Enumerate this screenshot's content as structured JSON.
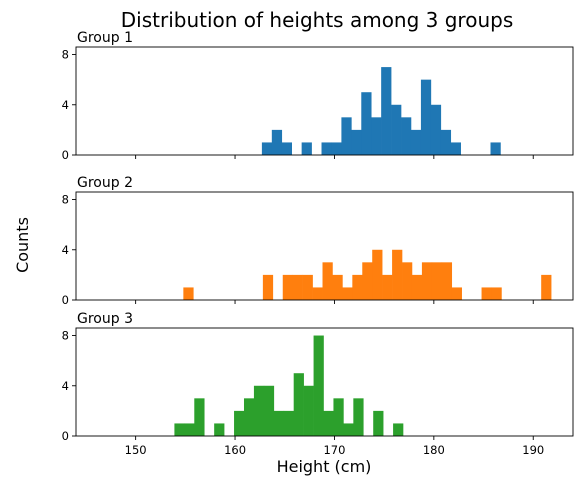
{
  "suptitle": "Distribution of heights among 3 groups",
  "ylabel": "Counts",
  "xlabel": "Height (cm)",
  "chart_data": {
    "type": "bar",
    "xlim": [
      144,
      194
    ],
    "ylim": [
      0,
      8.6
    ],
    "x_ticks": [
      150,
      160,
      170,
      180,
      190
    ],
    "y_ticks": [
      0,
      4,
      8
    ],
    "bin_width": 1,
    "sharex": true,
    "panels": [
      {
        "title": "Group 1",
        "color": "#1f77b4",
        "bins": [
          {
            "x0": 162.7,
            "count": 1
          },
          {
            "x0": 163.7,
            "count": 2
          },
          {
            "x0": 164.7,
            "count": 1
          },
          {
            "x0": 166.7,
            "count": 1
          },
          {
            "x0": 168.7,
            "count": 1
          },
          {
            "x0": 169.7,
            "count": 1
          },
          {
            "x0": 170.7,
            "count": 3
          },
          {
            "x0": 171.7,
            "count": 2
          },
          {
            "x0": 172.7,
            "count": 5
          },
          {
            "x0": 173.7,
            "count": 3
          },
          {
            "x0": 174.7,
            "count": 7
          },
          {
            "x0": 175.7,
            "count": 4
          },
          {
            "x0": 176.7,
            "count": 3
          },
          {
            "x0": 177.7,
            "count": 2
          },
          {
            "x0": 178.7,
            "count": 6
          },
          {
            "x0": 179.7,
            "count": 4
          },
          {
            "x0": 180.7,
            "count": 2
          },
          {
            "x0": 181.7,
            "count": 1
          },
          {
            "x0": 185.7,
            "count": 1
          }
        ]
      },
      {
        "title": "Group 2",
        "color": "#ff7f0e",
        "bins": [
          {
            "x0": 154.8,
            "count": 1
          },
          {
            "x0": 162.8,
            "count": 2
          },
          {
            "x0": 164.8,
            "count": 2
          },
          {
            "x0": 165.8,
            "count": 2
          },
          {
            "x0": 166.8,
            "count": 2
          },
          {
            "x0": 167.8,
            "count": 1
          },
          {
            "x0": 168.8,
            "count": 3
          },
          {
            "x0": 169.8,
            "count": 2
          },
          {
            "x0": 170.8,
            "count": 1
          },
          {
            "x0": 171.8,
            "count": 2
          },
          {
            "x0": 172.8,
            "count": 3
          },
          {
            "x0": 173.8,
            "count": 4
          },
          {
            "x0": 174.8,
            "count": 2
          },
          {
            "x0": 175.8,
            "count": 4
          },
          {
            "x0": 176.8,
            "count": 3
          },
          {
            "x0": 177.8,
            "count": 2
          },
          {
            "x0": 178.8,
            "count": 3
          },
          {
            "x0": 179.8,
            "count": 3
          },
          {
            "x0": 180.8,
            "count": 3
          },
          {
            "x0": 181.8,
            "count": 1
          },
          {
            "x0": 184.8,
            "count": 1
          },
          {
            "x0": 185.8,
            "count": 1
          },
          {
            "x0": 190.8,
            "count": 2
          }
        ]
      },
      {
        "title": "Group 3",
        "color": "#2ca02c",
        "bins": [
          {
            "x0": 153.9,
            "count": 1
          },
          {
            "x0": 154.9,
            "count": 1
          },
          {
            "x0": 155.9,
            "count": 3
          },
          {
            "x0": 157.9,
            "count": 1
          },
          {
            "x0": 159.9,
            "count": 2
          },
          {
            "x0": 160.9,
            "count": 3
          },
          {
            "x0": 161.9,
            "count": 4
          },
          {
            "x0": 162.9,
            "count": 4
          },
          {
            "x0": 163.9,
            "count": 2
          },
          {
            "x0": 164.9,
            "count": 2
          },
          {
            "x0": 165.9,
            "count": 5
          },
          {
            "x0": 166.9,
            "count": 4
          },
          {
            "x0": 167.9,
            "count": 8
          },
          {
            "x0": 168.9,
            "count": 2
          },
          {
            "x0": 169.9,
            "count": 3
          },
          {
            "x0": 170.9,
            "count": 1
          },
          {
            "x0": 171.9,
            "count": 3
          },
          {
            "x0": 173.9,
            "count": 2
          },
          {
            "x0": 175.9,
            "count": 1
          }
        ]
      }
    ]
  }
}
